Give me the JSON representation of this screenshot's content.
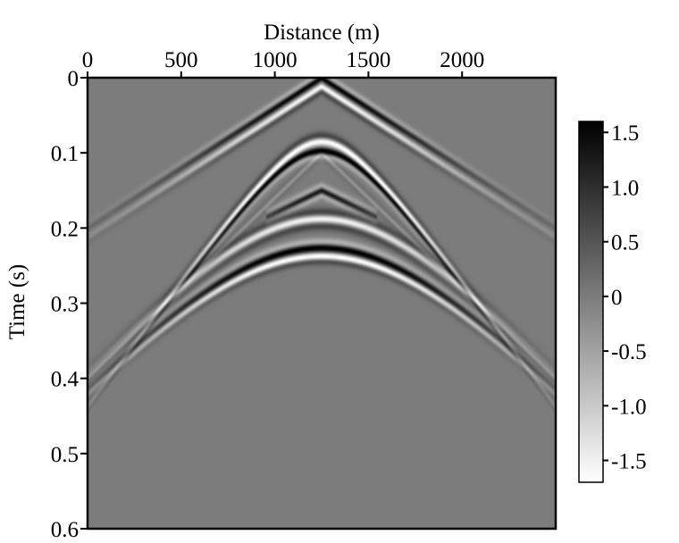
{
  "chart_data": {
    "type": "heatmap",
    "title": "",
    "xlabel": "Distance (m)",
    "ylabel": "Time (s)",
    "xlim": [
      0,
      2500
    ],
    "ylim": [
      0,
      0.6
    ],
    "x_axis_position": "top",
    "y_direction": "down",
    "grid": false,
    "colormap": "grayscale (high values black, low values white)",
    "x_ticks": [
      {
        "value": 0,
        "label": "0"
      },
      {
        "value": 500,
        "label": "500"
      },
      {
        "value": 1000,
        "label": "1000"
      },
      {
        "value": 1500,
        "label": "1500"
      },
      {
        "value": 2000,
        "label": "2000"
      }
    ],
    "y_ticks": [
      {
        "value": 0,
        "label": "0"
      },
      {
        "value": 0.1,
        "label": "0.1"
      },
      {
        "value": 0.2,
        "label": "0.2"
      },
      {
        "value": 0.3,
        "label": "0.3"
      },
      {
        "value": 0.4,
        "label": "0.4"
      },
      {
        "value": 0.5,
        "label": "0.5"
      },
      {
        "value": 0.6,
        "label": "0.6"
      }
    ],
    "colorbar": {
      "placement": "right",
      "range": [
        -1.7,
        1.6
      ],
      "ticks": [
        {
          "value": 1.5,
          "label": "1.5"
        },
        {
          "value": 1.0,
          "label": "1.0"
        },
        {
          "value": 0.5,
          "label": "0.5"
        },
        {
          "value": 0,
          "label": "0"
        },
        {
          "value": -0.5,
          "label": "-0.5"
        },
        {
          "value": -1.0,
          "label": "-1.0"
        },
        {
          "value": -1.5,
          "label": "-1.5"
        }
      ]
    },
    "events": [
      {
        "kind": "direct",
        "apex_x": 1250,
        "apex_t": 0.0,
        "slope_s_per_m": 0.00016,
        "amplitude": 1.5,
        "width_s": 0.006
      },
      {
        "kind": "direct_tail",
        "apex_x": 1250,
        "apex_t": 0.012,
        "slope_s_per_m": 0.00016,
        "amplitude": -1.5,
        "width_s": 0.006
      },
      {
        "kind": "hyperbola",
        "apex_x": 1250,
        "t0": 0.085,
        "velocity_m_per_s": 2900,
        "amplitude": -1.6,
        "width_s": 0.007
      },
      {
        "kind": "hyperbola",
        "apex_x": 1250,
        "t0": 0.098,
        "velocity_m_per_s": 2900,
        "amplitude": 1.5,
        "width_s": 0.006
      },
      {
        "kind": "hyperbola",
        "apex_x": 1250,
        "t0": 0.188,
        "velocity_m_per_s": 3600,
        "amplitude": -1.6,
        "width_s": 0.008
      },
      {
        "kind": "hyperbola",
        "apex_x": 1250,
        "t0": 0.226,
        "velocity_m_per_s": 3600,
        "amplitude": 1.6,
        "width_s": 0.007
      },
      {
        "kind": "hyperbola",
        "apex_x": 1250,
        "t0": 0.238,
        "velocity_m_per_s": 3600,
        "amplitude": -1.4,
        "width_s": 0.006
      },
      {
        "kind": "cross",
        "apex_x": 1250,
        "apex_t": 0.15,
        "slope_s_per_m": 0.00016,
        "amplitude": 1.4,
        "width_s": 0.006,
        "x_extent": [
          950,
          1550
        ]
      },
      {
        "kind": "faint_line",
        "apex_x": 1250,
        "apex_t": 0.1,
        "slope_s_per_m": 0.00024,
        "amplitude": -0.35,
        "width_s": 0.005
      }
    ]
  }
}
